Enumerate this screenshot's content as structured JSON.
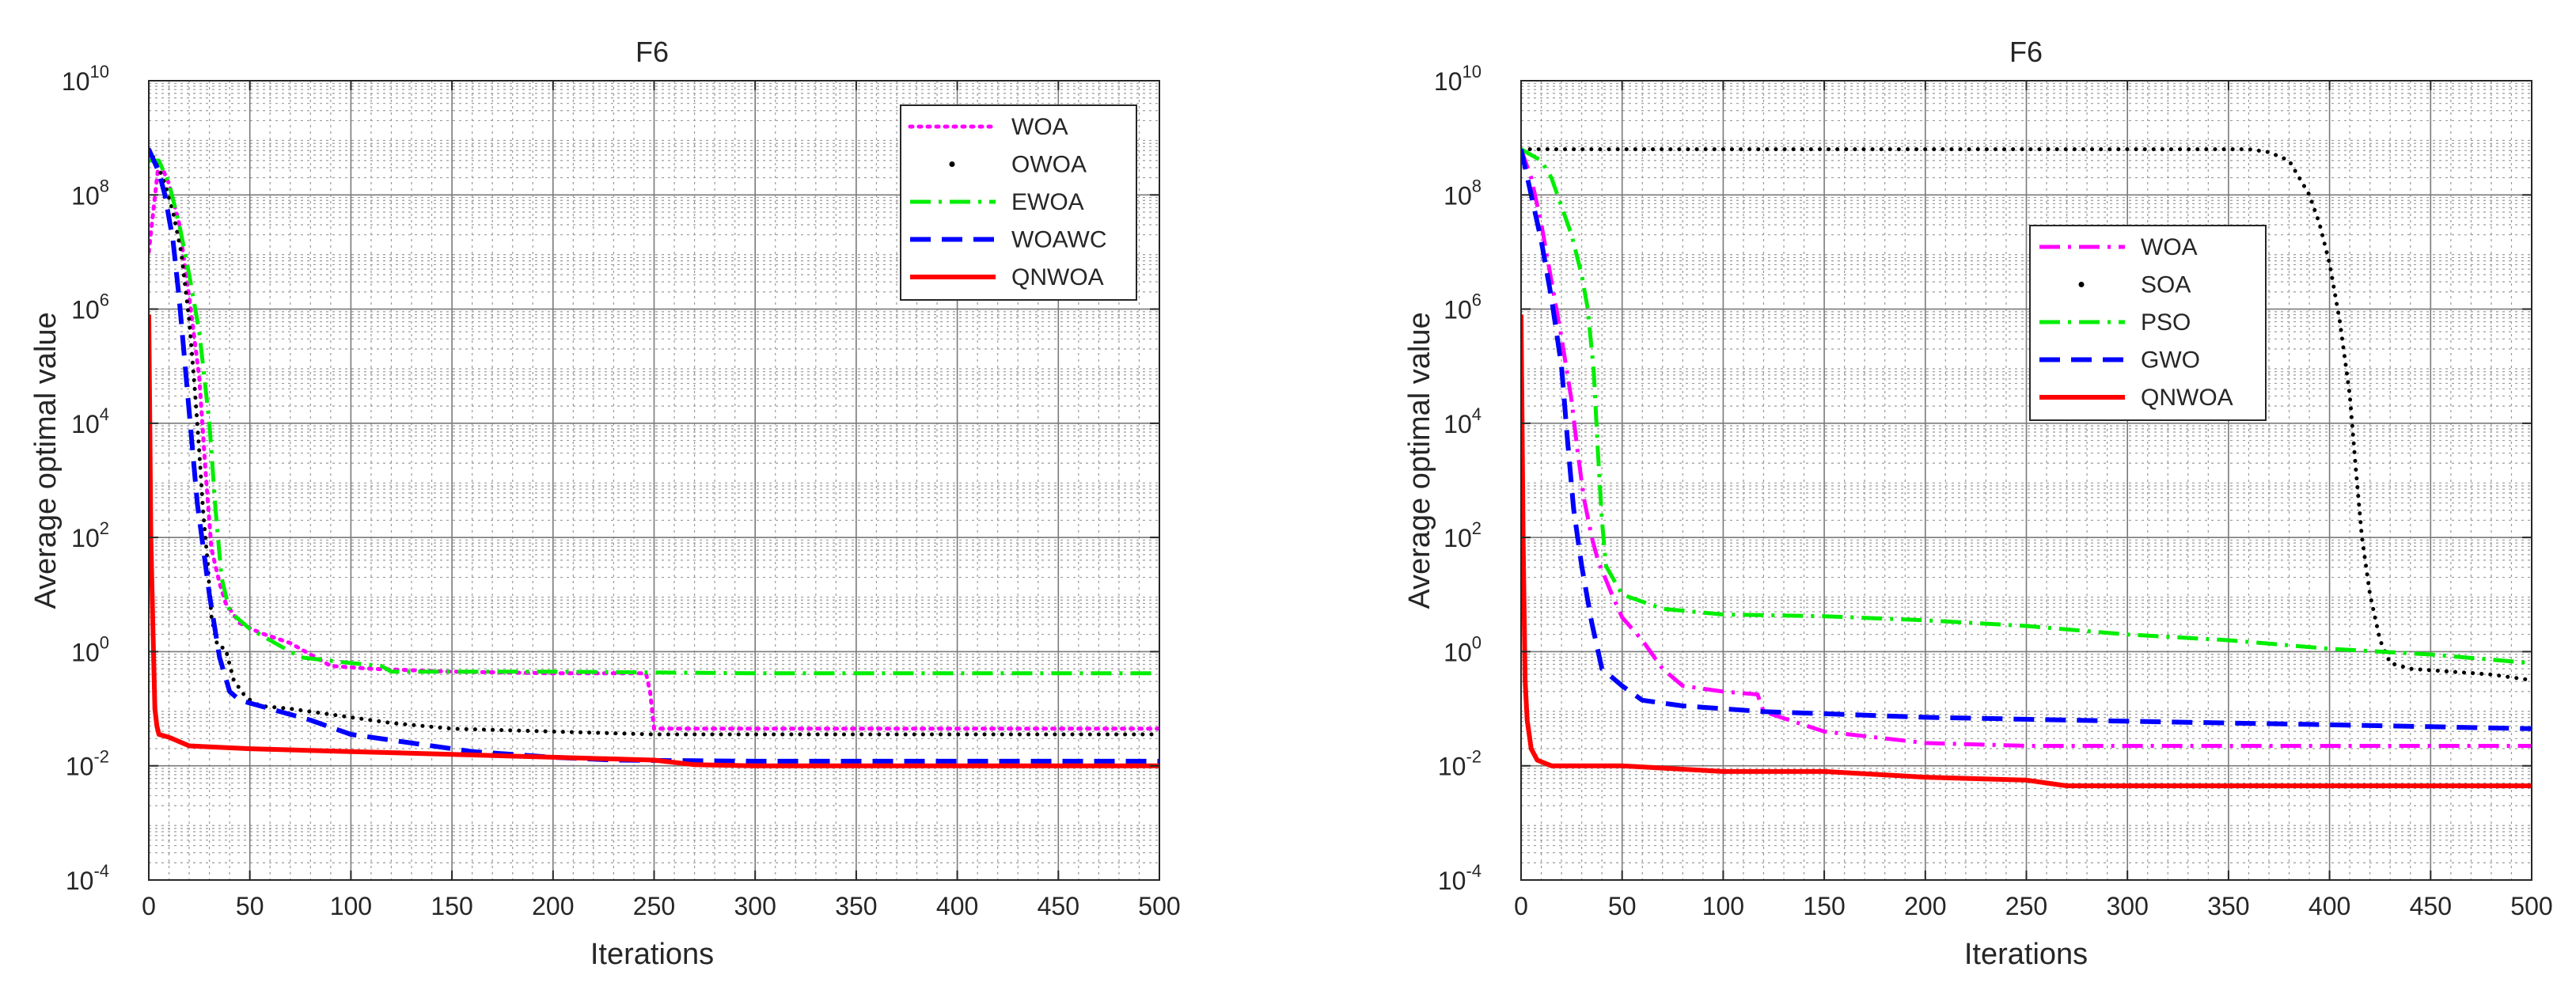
{
  "chart_data": [
    {
      "type": "line",
      "scale": "semilogy",
      "title": "F6",
      "xlabel": "Iterations",
      "ylabel": "Average optimal value",
      "xlim": [
        0,
        500
      ],
      "ylim_exp": [
        -4,
        10
      ],
      "xticks": [
        0,
        50,
        100,
        150,
        200,
        250,
        300,
        350,
        400,
        450,
        500
      ],
      "yticks_exp": [
        -4,
        -2,
        0,
        2,
        4,
        6,
        8,
        10
      ],
      "grid": "on, with minor grid",
      "legend_position": "top-right",
      "series": [
        {
          "name": "WOA",
          "color": "#ff00ff",
          "style": "dotted",
          "points": [
            [
              0,
              7.0
            ],
            [
              5,
              8.6
            ],
            [
              10,
              8.2
            ],
            [
              15,
              7.5
            ],
            [
              20,
              6.2
            ],
            [
              25,
              4.8
            ],
            [
              28,
              3.2
            ],
            [
              31,
              1.8
            ],
            [
              35,
              1.2
            ],
            [
              38,
              0.85
            ],
            [
              45,
              0.5
            ],
            [
              55,
              0.33
            ],
            [
              70,
              0.15
            ],
            [
              90,
              -0.25
            ],
            [
              110,
              -0.3
            ],
            [
              150,
              -0.35
            ],
            [
              200,
              -0.38
            ],
            [
              246,
              -0.38
            ],
            [
              248,
              -0.7
            ],
            [
              250,
              -1.35
            ],
            [
              300,
              -1.35
            ],
            [
              400,
              -1.35
            ],
            [
              500,
              -1.35
            ]
          ]
        },
        {
          "name": "OWOA",
          "color": "#000000",
          "style": "dots",
          "points": [
            [
              0,
              8.8
            ],
            [
              4,
              8.55
            ],
            [
              8,
              8.2
            ],
            [
              12,
              7.7
            ],
            [
              16,
              7.0
            ],
            [
              20,
              5.8
            ],
            [
              23,
              4.5
            ],
            [
              25,
              3.5
            ],
            [
              27,
              2.4
            ],
            [
              29,
              1.6
            ],
            [
              31,
              0.6
            ],
            [
              34,
              0.1
            ],
            [
              38,
              0.05
            ],
            [
              42,
              -0.5
            ],
            [
              48,
              -0.8
            ],
            [
              55,
              -0.95
            ],
            [
              70,
              -1.0
            ],
            [
              90,
              -1.1
            ],
            [
              120,
              -1.25
            ],
            [
              150,
              -1.35
            ],
            [
              200,
              -1.4
            ],
            [
              250,
              -1.45
            ],
            [
              300,
              -1.45
            ],
            [
              400,
              -1.45
            ],
            [
              500,
              -1.45
            ]
          ]
        },
        {
          "name": "EWOA",
          "color": "#00ee00",
          "style": "dashdot",
          "points": [
            [
              0,
              8.6
            ],
            [
              5,
              8.6
            ],
            [
              10,
              8.2
            ],
            [
              15,
              7.5
            ],
            [
              20,
              6.6
            ],
            [
              25,
              5.6
            ],
            [
              30,
              4.0
            ],
            [
              33,
              2.5
            ],
            [
              36,
              1.3
            ],
            [
              40,
              0.7
            ],
            [
              50,
              0.4
            ],
            [
              60,
              0.2
            ],
            [
              75,
              -0.1
            ],
            [
              100,
              -0.2
            ],
            [
              115,
              -0.25
            ],
            [
              120,
              -0.35
            ],
            [
              200,
              -0.35
            ],
            [
              300,
              -0.38
            ],
            [
              400,
              -0.38
            ],
            [
              500,
              -0.38
            ]
          ]
        },
        {
          "name": "WOAWC",
          "color": "#0000ff",
          "style": "dashed",
          "points": [
            [
              0,
              8.8
            ],
            [
              5,
              8.4
            ],
            [
              8,
              8.0
            ],
            [
              12,
              7.2
            ],
            [
              15,
              6.2
            ],
            [
              18,
              5.0
            ],
            [
              21,
              3.8
            ],
            [
              24,
              2.6
            ],
            [
              27,
              1.8
            ],
            [
              30,
              1.0
            ],
            [
              35,
              -0.1
            ],
            [
              40,
              -0.7
            ],
            [
              45,
              -0.85
            ],
            [
              60,
              -1.0
            ],
            [
              80,
              -1.2
            ],
            [
              100,
              -1.45
            ],
            [
              130,
              -1.6
            ],
            [
              160,
              -1.75
            ],
            [
              200,
              -1.85
            ],
            [
              230,
              -1.9
            ],
            [
              300,
              -1.92
            ],
            [
              400,
              -1.92
            ],
            [
              500,
              -1.92
            ]
          ]
        },
        {
          "name": "QNWOA",
          "color": "#ff0000",
          "style": "solid",
          "points": [
            [
              0,
              5.9
            ],
            [
              0.5,
              4.0
            ],
            [
              1,
              2.0
            ],
            [
              2,
              0.5
            ],
            [
              3,
              -1.0
            ],
            [
              4,
              -1.3
            ],
            [
              5,
              -1.45
            ],
            [
              10,
              -1.5
            ],
            [
              20,
              -1.65
            ],
            [
              50,
              -1.7
            ],
            [
              100,
              -1.75
            ],
            [
              150,
              -1.8
            ],
            [
              200,
              -1.85
            ],
            [
              250,
              -1.9
            ],
            [
              270,
              -1.98
            ],
            [
              300,
              -2.0
            ],
            [
              400,
              -2.0
            ],
            [
              500,
              -2.0
            ]
          ]
        }
      ]
    },
    {
      "type": "line",
      "scale": "semilogy",
      "title": "F6",
      "xlabel": "Iterations",
      "ylabel": "Average optimal value",
      "xlim": [
        0,
        500
      ],
      "ylim_exp": [
        -4,
        10
      ],
      "xticks": [
        0,
        50,
        100,
        150,
        200,
        250,
        300,
        350,
        400,
        450,
        500
      ],
      "yticks_exp": [
        -4,
        -2,
        0,
        2,
        4,
        6,
        8,
        10
      ],
      "grid": "on, with minor grid",
      "legend_position": "upper-center-right",
      "series": [
        {
          "name": "WOA",
          "color": "#ff00ff",
          "style": "dashdot",
          "points": [
            [
              0,
              8.8
            ],
            [
              5,
              8.3
            ],
            [
              10,
              7.5
            ],
            [
              15,
              6.5
            ],
            [
              20,
              5.5
            ],
            [
              25,
              4.4
            ],
            [
              28,
              3.5
            ],
            [
              31,
              2.7
            ],
            [
              35,
              2.0
            ],
            [
              38,
              1.6
            ],
            [
              45,
              1.0
            ],
            [
              50,
              0.6
            ],
            [
              60,
              0.2
            ],
            [
              70,
              -0.3
            ],
            [
              80,
              -0.6
            ],
            [
              100,
              -0.7
            ],
            [
              117,
              -0.75
            ],
            [
              120,
              -1.05
            ],
            [
              150,
              -1.4
            ],
            [
              200,
              -1.6
            ],
            [
              250,
              -1.65
            ],
            [
              300,
              -1.65
            ],
            [
              400,
              -1.65
            ],
            [
              500,
              -1.65
            ]
          ]
        },
        {
          "name": "SOA",
          "color": "#000000",
          "style": "dots",
          "points": [
            [
              0,
              8.8
            ],
            [
              50,
              8.8
            ],
            [
              100,
              8.8
            ],
            [
              200,
              8.8
            ],
            [
              300,
              8.8
            ],
            [
              360,
              8.8
            ],
            [
              370,
              8.75
            ],
            [
              380,
              8.6
            ],
            [
              390,
              8.0
            ],
            [
              395,
              7.5
            ],
            [
              400,
              6.8
            ],
            [
              405,
              5.8
            ],
            [
              410,
              4.5
            ],
            [
              413,
              3.2
            ],
            [
              416,
              2.0
            ],
            [
              420,
              1.0
            ],
            [
              425,
              0.2
            ],
            [
              430,
              -0.2
            ],
            [
              440,
              -0.3
            ],
            [
              460,
              -0.35
            ],
            [
              480,
              -0.4
            ],
            [
              500,
              -0.5
            ]
          ]
        },
        {
          "name": "PSO",
          "color": "#00ee00",
          "style": "dashdot",
          "points": [
            [
              0,
              8.8
            ],
            [
              10,
              8.6
            ],
            [
              15,
              8.3
            ],
            [
              20,
              7.8
            ],
            [
              25,
              7.3
            ],
            [
              30,
              6.6
            ],
            [
              33,
              6.0
            ],
            [
              36,
              4.9
            ],
            [
              38,
              3.5
            ],
            [
              40,
              2.3
            ],
            [
              42,
              1.5
            ],
            [
              50,
              1.0
            ],
            [
              70,
              0.75
            ],
            [
              100,
              0.65
            ],
            [
              150,
              0.62
            ],
            [
              200,
              0.55
            ],
            [
              250,
              0.45
            ],
            [
              300,
              0.3
            ],
            [
              350,
              0.2
            ],
            [
              400,
              0.05
            ],
            [
              450,
              -0.05
            ],
            [
              500,
              -0.2
            ]
          ]
        },
        {
          "name": "GWO",
          "color": "#0000ff",
          "style": "dashed",
          "points": [
            [
              0,
              8.8
            ],
            [
              5,
              8.0
            ],
            [
              10,
              7.2
            ],
            [
              15,
              6.2
            ],
            [
              20,
              5.0
            ],
            [
              23,
              3.7
            ],
            [
              26,
              2.5
            ],
            [
              30,
              1.5
            ],
            [
              35,
              0.5
            ],
            [
              40,
              -0.3
            ],
            [
              50,
              -0.6
            ],
            [
              60,
              -0.85
            ],
            [
              80,
              -0.95
            ],
            [
              120,
              -1.05
            ],
            [
              200,
              -1.15
            ],
            [
              300,
              -1.22
            ],
            [
              400,
              -1.28
            ],
            [
              500,
              -1.35
            ]
          ]
        },
        {
          "name": "QNWOA",
          "color": "#ff0000",
          "style": "solid",
          "points": [
            [
              0,
              5.9
            ],
            [
              0.5,
              4.0
            ],
            [
              1,
              2.0
            ],
            [
              2,
              -0.5
            ],
            [
              3,
              -1.2
            ],
            [
              5,
              -1.7
            ],
            [
              8,
              -1.9
            ],
            [
              15,
              -2.0
            ],
            [
              50,
              -2.0
            ],
            [
              100,
              -2.1
            ],
            [
              150,
              -2.1
            ],
            [
              200,
              -2.2
            ],
            [
              250,
              -2.25
            ],
            [
              270,
              -2.35
            ],
            [
              300,
              -2.35
            ],
            [
              400,
              -2.35
            ],
            [
              500,
              -2.35
            ]
          ]
        }
      ]
    }
  ]
}
